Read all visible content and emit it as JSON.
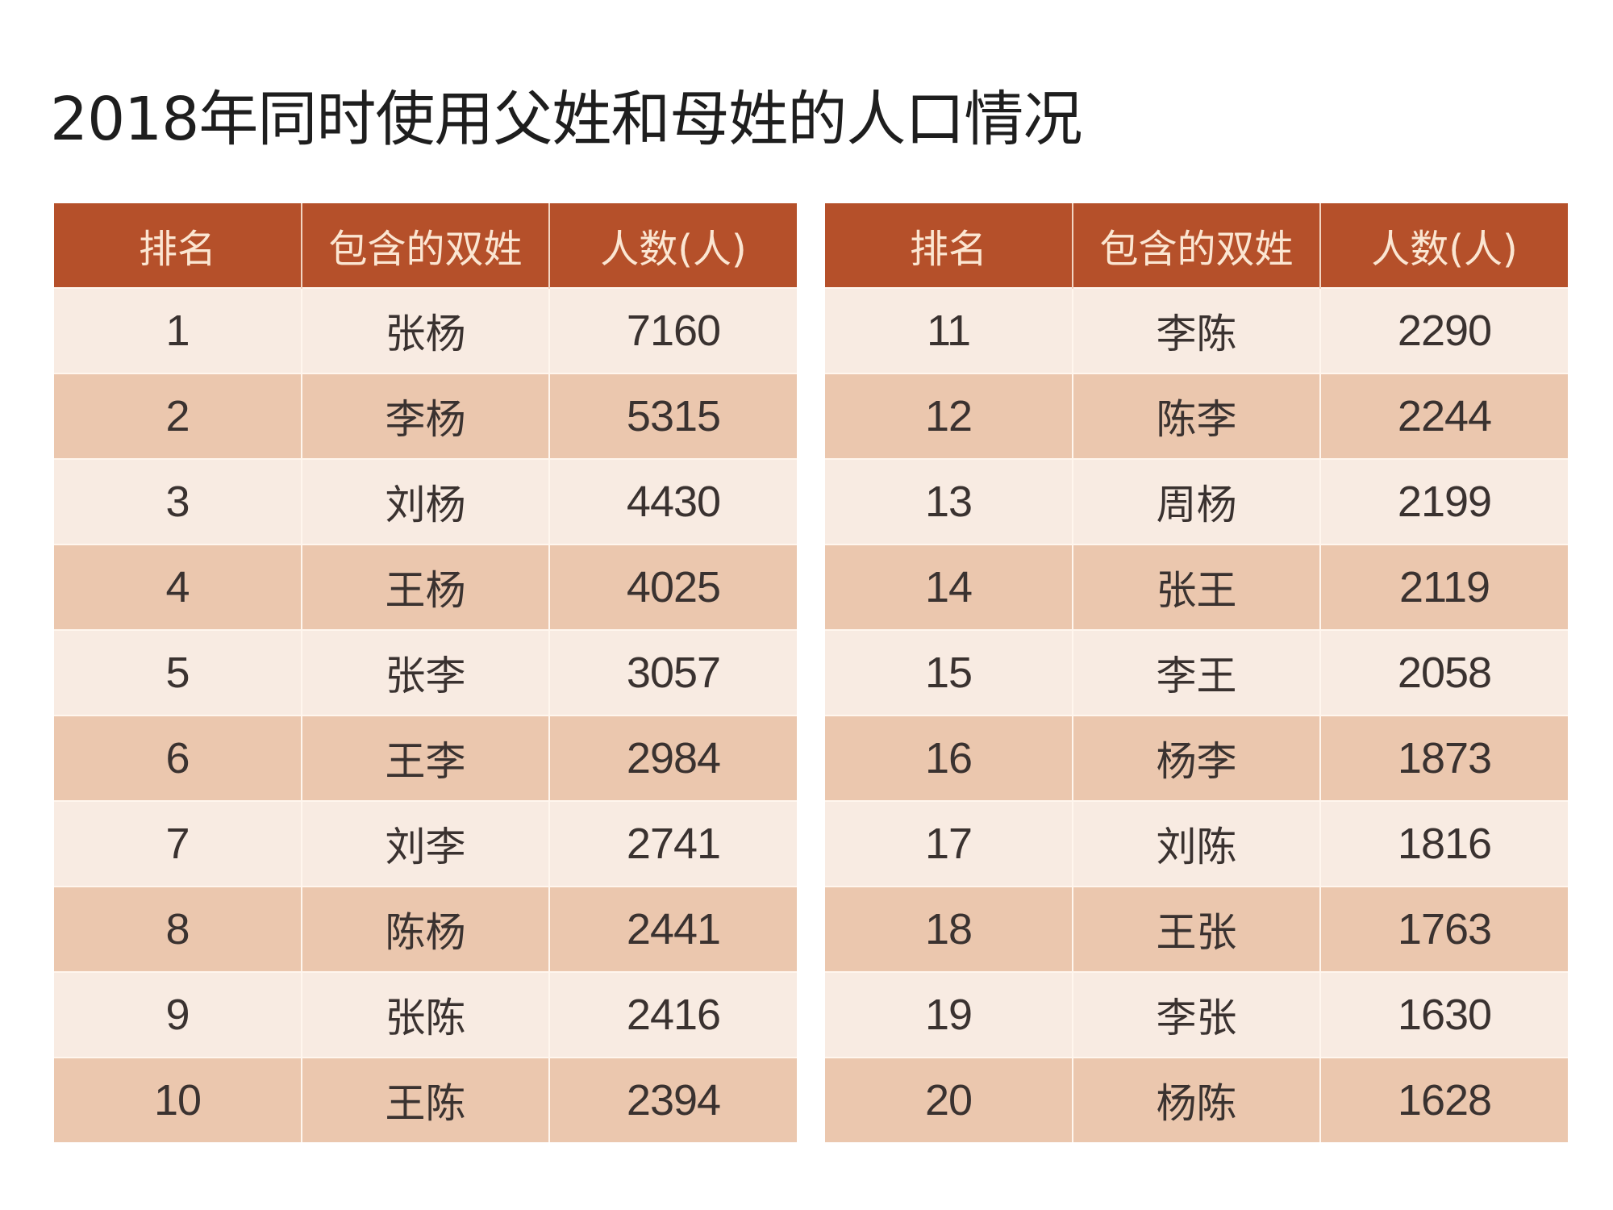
{
  "title": "2018年同时使用父姓和母姓的人口情况",
  "columns": [
    "排名",
    "包含的双姓",
    "人数(人)"
  ],
  "colors": {
    "header_bg": "#b5502a",
    "header_text": "#fbe6d2",
    "row_light": "#f8ebe2",
    "row_dark": "#ebc7ae"
  },
  "left_table": {
    "rows": [
      {
        "rank": "1",
        "surname": "张杨",
        "count": "7160"
      },
      {
        "rank": "2",
        "surname": "李杨",
        "count": "5315"
      },
      {
        "rank": "3",
        "surname": "刘杨",
        "count": "4430"
      },
      {
        "rank": "4",
        "surname": "王杨",
        "count": "4025"
      },
      {
        "rank": "5",
        "surname": "张李",
        "count": "3057"
      },
      {
        "rank": "6",
        "surname": "王李",
        "count": "2984"
      },
      {
        "rank": "7",
        "surname": "刘李",
        "count": "2741"
      },
      {
        "rank": "8",
        "surname": "陈杨",
        "count": "2441"
      },
      {
        "rank": "9",
        "surname": "张陈",
        "count": "2416"
      },
      {
        "rank": "10",
        "surname": "王陈",
        "count": "2394"
      }
    ]
  },
  "right_table": {
    "rows": [
      {
        "rank": "11",
        "surname": "李陈",
        "count": "2290"
      },
      {
        "rank": "12",
        "surname": "陈李",
        "count": "2244"
      },
      {
        "rank": "13",
        "surname": "周杨",
        "count": "2199"
      },
      {
        "rank": "14",
        "surname": "张王",
        "count": "2119"
      },
      {
        "rank": "15",
        "surname": "李王",
        "count": "2058"
      },
      {
        "rank": "16",
        "surname": "杨李",
        "count": "1873"
      },
      {
        "rank": "17",
        "surname": "刘陈",
        "count": "1816"
      },
      {
        "rank": "18",
        "surname": "王张",
        "count": "1763"
      },
      {
        "rank": "19",
        "surname": "李张",
        "count": "1630"
      },
      {
        "rank": "20",
        "surname": "杨陈",
        "count": "1628"
      }
    ]
  },
  "chart_data": {
    "type": "table",
    "title": "2018年同时使用父姓和母姓的人口情况",
    "columns": [
      "排名",
      "包含的双姓",
      "人数(人)"
    ],
    "rows": [
      [
        1,
        "张杨",
        7160
      ],
      [
        2,
        "李杨",
        5315
      ],
      [
        3,
        "刘杨",
        4430
      ],
      [
        4,
        "王杨",
        4025
      ],
      [
        5,
        "张李",
        3057
      ],
      [
        6,
        "王李",
        2984
      ],
      [
        7,
        "刘李",
        2741
      ],
      [
        8,
        "陈杨",
        2441
      ],
      [
        9,
        "张陈",
        2416
      ],
      [
        10,
        "王陈",
        2394
      ],
      [
        11,
        "李陈",
        2290
      ],
      [
        12,
        "陈李",
        2244
      ],
      [
        13,
        "周杨",
        2199
      ],
      [
        14,
        "张王",
        2119
      ],
      [
        15,
        "李王",
        2058
      ],
      [
        16,
        "杨李",
        1873
      ],
      [
        17,
        "刘陈",
        1816
      ],
      [
        18,
        "王张",
        1763
      ],
      [
        19,
        "李张",
        1630
      ],
      [
        20,
        "杨陈",
        1628
      ]
    ]
  }
}
